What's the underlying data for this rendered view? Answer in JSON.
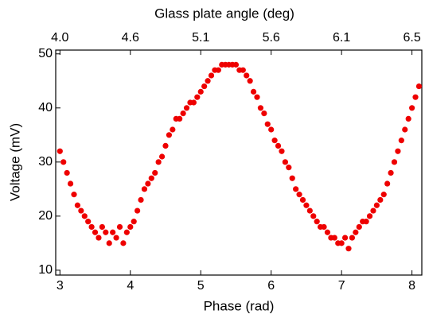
{
  "chart_data": {
    "type": "scatter",
    "xlabel": "Phase (rad)",
    "ylabel": "Voltage (mV)",
    "x2label": "Glass plate angle (deg)",
    "xlim": [
      2.94,
      8.14
    ],
    "ylim": [
      9.1,
      50.7
    ],
    "xticks": [
      3,
      4,
      5,
      6,
      7,
      8
    ],
    "yticks": [
      10,
      20,
      30,
      40,
      50
    ],
    "x2ticks": [
      {
        "value": 4.0,
        "label": "4.0"
      },
      4.6,
      5.1,
      5.6,
      6.1,
      6.5
    ],
    "grid": false,
    "series": [
      {
        "color": "#ee0000",
        "x": [
          3.0,
          3.05,
          3.1,
          3.15,
          3.2,
          3.25,
          3.3,
          3.35,
          3.4,
          3.45,
          3.5,
          3.55,
          3.6,
          3.65,
          3.7,
          3.75,
          3.8,
          3.85,
          3.9,
          3.95,
          4.0,
          4.05,
          4.1,
          4.15,
          4.2,
          4.25,
          4.3,
          4.35,
          4.4,
          4.45,
          4.5,
          4.55,
          4.6,
          4.65,
          4.7,
          4.75,
          4.8,
          4.85,
          4.9,
          4.95,
          5.0,
          5.05,
          5.1,
          5.15,
          5.2,
          5.25,
          5.3,
          5.35,
          5.4,
          5.45,
          5.5,
          5.55,
          5.6,
          5.65,
          5.7,
          5.75,
          5.8,
          5.85,
          5.9,
          5.95,
          6.0,
          6.05,
          6.1,
          6.15,
          6.2,
          6.25,
          6.3,
          6.35,
          6.4,
          6.45,
          6.5,
          6.55,
          6.6,
          6.65,
          6.7,
          6.75,
          6.8,
          6.85,
          6.9,
          6.95,
          7.0,
          7.05,
          7.1,
          7.15,
          7.2,
          7.25,
          7.3,
          7.35,
          7.4,
          7.45,
          7.5,
          7.55,
          7.6,
          7.65,
          7.7,
          7.75,
          7.8,
          7.85,
          7.9,
          7.95,
          8.0,
          8.05,
          8.1
        ],
        "values": [
          32,
          30,
          28,
          26,
          24,
          22,
          21,
          20,
          19,
          18,
          17,
          16,
          18,
          17,
          15,
          17,
          16,
          18,
          15,
          17,
          18,
          19,
          21,
          23,
          25,
          26,
          27,
          28,
          30,
          31,
          33,
          35,
          36,
          38,
          38,
          39,
          40,
          41,
          41,
          42,
          43,
          44,
          45,
          46,
          47,
          47,
          48,
          48,
          48,
          48,
          48,
          47,
          47,
          46,
          45,
          43,
          42,
          40,
          39,
          37,
          36,
          34,
          33,
          32,
          30,
          29,
          27,
          25,
          24,
          23,
          22,
          21,
          20,
          19,
          18,
          18,
          17,
          16,
          16,
          15,
          15,
          16,
          14,
          16,
          17,
          18,
          19,
          19,
          20,
          21,
          22,
          23,
          24,
          26,
          28,
          30,
          32,
          34,
          36,
          38,
          40,
          42,
          44
        ]
      }
    ]
  }
}
